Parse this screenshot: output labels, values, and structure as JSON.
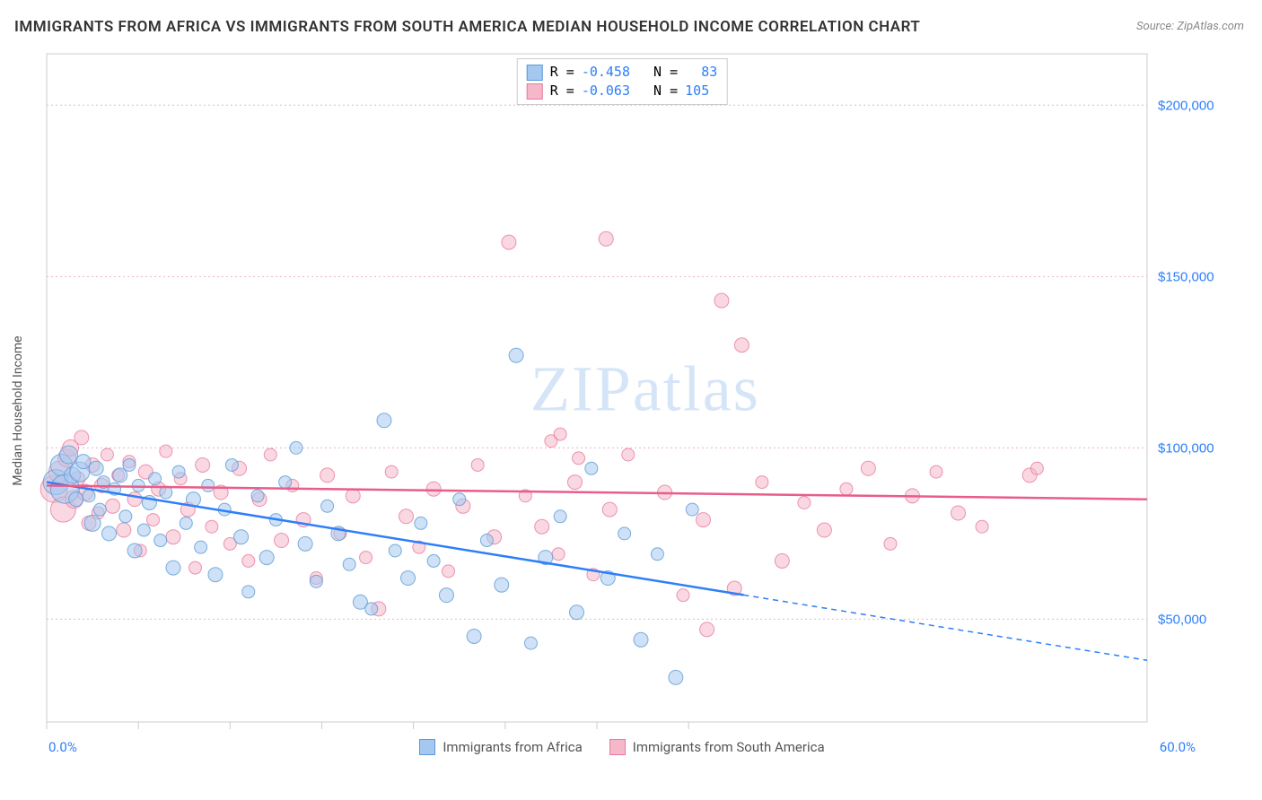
{
  "title": "IMMIGRANTS FROM AFRICA VS IMMIGRANTS FROM SOUTH AMERICA MEDIAN HOUSEHOLD INCOME CORRELATION CHART",
  "source": "Source: ZipAtlas.com",
  "watermark": "ZIPatlas",
  "chart": {
    "type": "scatter",
    "ylabel": "Median Household Income",
    "xlim": [
      0,
      60
    ],
    "ylim": [
      20000,
      215000
    ],
    "x_axis_format": "percent",
    "y_axis_format": "currency",
    "x_min_label": "0.0%",
    "x_max_label": "60.0%",
    "y_ticks": [
      50000,
      100000,
      150000,
      200000
    ],
    "y_tick_labels": [
      "$50,000",
      "$100,000",
      "$150,000",
      "$200,000"
    ],
    "x_major_ticks": [
      0,
      5,
      10,
      15,
      20,
      25,
      30,
      35
    ],
    "background_color": "#ffffff",
    "grid_color": "#e8b5c5",
    "grid_dash": "2,3",
    "border_color": "#cccccc",
    "font_size_title": 17,
    "font_size_label": 14,
    "font_size_tick": 15,
    "series": [
      {
        "name": "Immigrants from Africa",
        "legend_label": "Immigrants from Africa",
        "fill_color": "#a5c8f0",
        "stroke_color": "#5b9bd5",
        "line_color": "#2d7ff9",
        "R": "-0.458",
        "N": "83",
        "marker_opacity": 0.55,
        "marker_radius_min": 6,
        "marker_radius_max": 16,
        "trend": {
          "y_at_x0": 90000,
          "y_at_x60": 38000,
          "solid_until_x": 38
        },
        "points": [
          [
            0.5,
            90000,
            14
          ],
          [
            0.8,
            95000,
            12
          ],
          [
            1.0,
            88000,
            16
          ],
          [
            1.2,
            98000,
            10
          ],
          [
            1.4,
            92000,
            9
          ],
          [
            1.6,
            85000,
            8
          ],
          [
            1.8,
            93000,
            11
          ],
          [
            2.0,
            96000,
            8
          ],
          [
            2.3,
            86000,
            7
          ],
          [
            2.5,
            78000,
            9
          ],
          [
            2.7,
            94000,
            8
          ],
          [
            2.9,
            82000,
            7
          ],
          [
            3.1,
            90000,
            7
          ],
          [
            3.4,
            75000,
            8
          ],
          [
            3.7,
            88000,
            7
          ],
          [
            4.0,
            92000,
            8
          ],
          [
            4.3,
            80000,
            7
          ],
          [
            4.5,
            95000,
            7
          ],
          [
            4.8,
            70000,
            8
          ],
          [
            5.0,
            89000,
            7
          ],
          [
            5.3,
            76000,
            7
          ],
          [
            5.6,
            84000,
            8
          ],
          [
            5.9,
            91000,
            7
          ],
          [
            6.2,
            73000,
            7
          ],
          [
            6.5,
            87000,
            7
          ],
          [
            6.9,
            65000,
            8
          ],
          [
            7.2,
            93000,
            7
          ],
          [
            7.6,
            78000,
            7
          ],
          [
            8.0,
            85000,
            8
          ],
          [
            8.4,
            71000,
            7
          ],
          [
            8.8,
            89000,
            7
          ],
          [
            9.2,
            63000,
            8
          ],
          [
            9.7,
            82000,
            7
          ],
          [
            10.1,
            95000,
            7
          ],
          [
            10.6,
            74000,
            8
          ],
          [
            11.0,
            58000,
            7
          ],
          [
            11.5,
            86000,
            7
          ],
          [
            12.0,
            68000,
            8
          ],
          [
            12.5,
            79000,
            7
          ],
          [
            13.0,
            90000,
            7
          ],
          [
            13.6,
            100000,
            7
          ],
          [
            14.1,
            72000,
            8
          ],
          [
            14.7,
            61000,
            7
          ],
          [
            15.3,
            83000,
            7
          ],
          [
            15.9,
            75000,
            8
          ],
          [
            16.5,
            66000,
            7
          ],
          [
            17.1,
            55000,
            8
          ],
          [
            17.7,
            53000,
            7
          ],
          [
            18.4,
            108000,
            8
          ],
          [
            19.0,
            70000,
            7
          ],
          [
            19.7,
            62000,
            8
          ],
          [
            20.4,
            78000,
            7
          ],
          [
            21.1,
            67000,
            7
          ],
          [
            21.8,
            57000,
            8
          ],
          [
            22.5,
            85000,
            7
          ],
          [
            23.3,
            45000,
            8
          ],
          [
            24.0,
            73000,
            7
          ],
          [
            24.8,
            60000,
            8
          ],
          [
            25.6,
            127000,
            8
          ],
          [
            26.4,
            43000,
            7
          ],
          [
            27.2,
            68000,
            8
          ],
          [
            28.0,
            80000,
            7
          ],
          [
            28.9,
            52000,
            8
          ],
          [
            29.7,
            94000,
            7
          ],
          [
            30.6,
            62000,
            8
          ],
          [
            31.5,
            75000,
            7
          ],
          [
            32.4,
            44000,
            8
          ],
          [
            33.3,
            69000,
            7
          ],
          [
            34.3,
            33000,
            8
          ],
          [
            35.2,
            82000,
            7
          ]
        ]
      },
      {
        "name": "Immigrants from South America",
        "legend_label": "Immigrants from South America",
        "fill_color": "#f4b8c8",
        "stroke_color": "#e87ba0",
        "line_color": "#e85d8a",
        "R": "-0.063",
        "N": "105",
        "marker_opacity": 0.55,
        "marker_radius_min": 6,
        "marker_radius_max": 16,
        "trend": {
          "y_at_x0": 89000,
          "y_at_x60": 85000,
          "solid_until_x": 60
        },
        "points": [
          [
            0.4,
            88000,
            15
          ],
          [
            0.7,
            93000,
            12
          ],
          [
            0.9,
            82000,
            14
          ],
          [
            1.1,
            97000,
            10
          ],
          [
            1.3,
            100000,
            9
          ],
          [
            1.5,
            85000,
            10
          ],
          [
            1.7,
            91000,
            8
          ],
          [
            1.9,
            103000,
            8
          ],
          [
            2.1,
            87000,
            9
          ],
          [
            2.3,
            78000,
            8
          ],
          [
            2.5,
            95000,
            8
          ],
          [
            2.8,
            81000,
            7
          ],
          [
            3.0,
            89000,
            8
          ],
          [
            3.3,
            98000,
            7
          ],
          [
            3.6,
            83000,
            8
          ],
          [
            3.9,
            92000,
            7
          ],
          [
            4.2,
            76000,
            8
          ],
          [
            4.5,
            96000,
            7
          ],
          [
            4.8,
            85000,
            8
          ],
          [
            5.1,
            70000,
            7
          ],
          [
            5.4,
            93000,
            8
          ],
          [
            5.8,
            79000,
            7
          ],
          [
            6.1,
            88000,
            8
          ],
          [
            6.5,
            99000,
            7
          ],
          [
            6.9,
            74000,
            8
          ],
          [
            7.3,
            91000,
            7
          ],
          [
            7.7,
            82000,
            8
          ],
          [
            8.1,
            65000,
            7
          ],
          [
            8.5,
            95000,
            8
          ],
          [
            9.0,
            77000,
            7
          ],
          [
            9.5,
            87000,
            8
          ],
          [
            10.0,
            72000,
            7
          ],
          [
            10.5,
            94000,
            8
          ],
          [
            11.0,
            67000,
            7
          ],
          [
            11.6,
            85000,
            8
          ],
          [
            12.2,
            98000,
            7
          ],
          [
            12.8,
            73000,
            8
          ],
          [
            13.4,
            89000,
            7
          ],
          [
            14.0,
            79000,
            8
          ],
          [
            14.7,
            62000,
            7
          ],
          [
            15.3,
            92000,
            8
          ],
          [
            16.0,
            75000,
            7
          ],
          [
            16.7,
            86000,
            8
          ],
          [
            17.4,
            68000,
            7
          ],
          [
            18.1,
            53000,
            8
          ],
          [
            18.8,
            93000,
            7
          ],
          [
            19.6,
            80000,
            8
          ],
          [
            20.3,
            71000,
            7
          ],
          [
            21.1,
            88000,
            8
          ],
          [
            21.9,
            64000,
            7
          ],
          [
            22.7,
            83000,
            8
          ],
          [
            23.5,
            95000,
            7
          ],
          [
            24.4,
            74000,
            8
          ],
          [
            25.2,
            160000,
            8
          ],
          [
            26.1,
            86000,
            7
          ],
          [
            27.0,
            77000,
            8
          ],
          [
            27.9,
            69000,
            7
          ],
          [
            28.8,
            90000,
            8
          ],
          [
            29.8,
            63000,
            7
          ],
          [
            30.7,
            82000,
            8
          ],
          [
            31.7,
            98000,
            7
          ],
          [
            30.5,
            161000,
            8
          ],
          [
            33.7,
            87000,
            8
          ],
          [
            34.7,
            57000,
            7
          ],
          [
            35.8,
            79000,
            8
          ],
          [
            36.8,
            143000,
            8
          ],
          [
            37.9,
            130000,
            8
          ],
          [
            39.0,
            90000,
            7
          ],
          [
            40.1,
            67000,
            8
          ],
          [
            41.3,
            84000,
            7
          ],
          [
            42.4,
            76000,
            8
          ],
          [
            43.6,
            88000,
            7
          ],
          [
            44.8,
            94000,
            8
          ],
          [
            46.0,
            72000,
            7
          ],
          [
            47.2,
            86000,
            8
          ],
          [
            48.5,
            93000,
            7
          ],
          [
            49.7,
            81000,
            8
          ],
          [
            51.0,
            77000,
            7
          ],
          [
            53.6,
            92000,
            8
          ],
          [
            54.0,
            94000,
            7
          ],
          [
            36.0,
            47000,
            8
          ],
          [
            37.5,
            59000,
            8
          ],
          [
            27.5,
            102000,
            7
          ],
          [
            28.0,
            104000,
            7
          ],
          [
            29.0,
            97000,
            7
          ]
        ]
      }
    ]
  }
}
